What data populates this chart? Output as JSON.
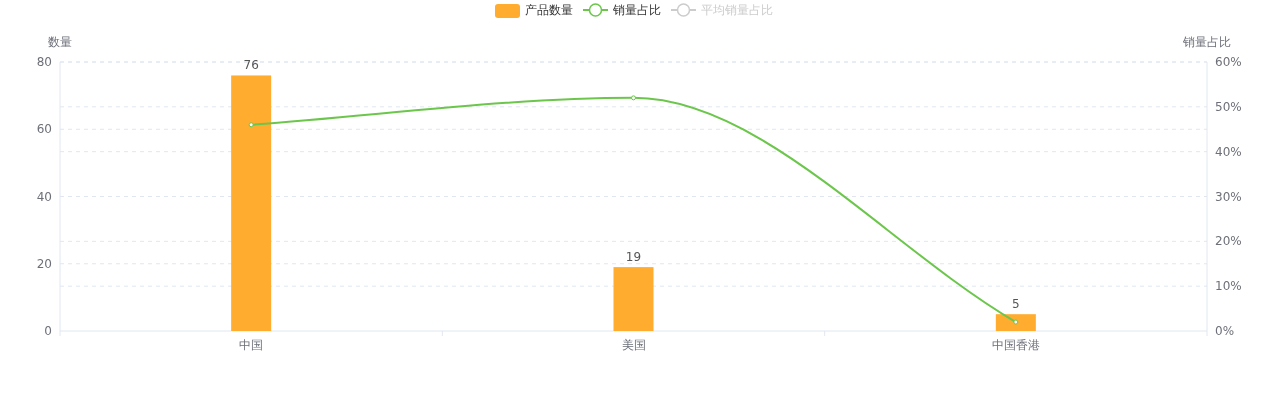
{
  "chart_data": {
    "type": "bar",
    "categories": [
      "中国",
      "美国",
      "中国香港"
    ],
    "series": [
      {
        "name": "产品数量",
        "color": "#ffac2f",
        "values": [
          76,
          19,
          5
        ],
        "value_labels": [
          "76",
          "19",
          "5"
        ]
      },
      {
        "name": "销量占比",
        "type": "line",
        "axis": "y2",
        "color": "#6cc64c",
        "values": [
          46,
          52,
          2
        ]
      },
      {
        "name": "平均销量占比",
        "type": "line",
        "axis": "y2",
        "color": "#cccccc",
        "values": [
          null,
          null,
          null
        ]
      }
    ],
    "ylabel": "数量",
    "y2label": "销量占比",
    "ylim": [
      0,
      80
    ],
    "yticks": [
      0,
      20,
      40,
      60,
      80
    ],
    "y2lim": [
      0,
      60
    ],
    "y2ticks": [
      {
        "value": 0,
        "label": "0%"
      },
      {
        "value": 10,
        "label": "10%"
      },
      {
        "value": 20,
        "label": "20%"
      },
      {
        "value": 30,
        "label": "30%"
      },
      {
        "value": 40,
        "label": "40%"
      },
      {
        "value": 50,
        "label": "50%"
      },
      {
        "value": 60,
        "label": "60%"
      }
    ],
    "grid": true,
    "legend": "top",
    "marker": "circle"
  }
}
